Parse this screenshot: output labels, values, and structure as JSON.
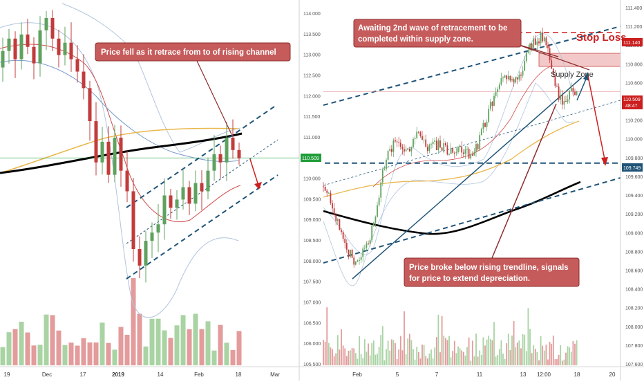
{
  "colors": {
    "up": "#5fa25f",
    "down": "#c23b3b",
    "vol_up": "#a9d3a3",
    "vol_down": "#e39b9b",
    "channel": "#1f5478",
    "ma_black": "#000000",
    "ma_orange": "#e9b64a",
    "ma_red": "#d14b4b",
    "ma_blue": "#7a9cc8",
    "band": "#b0c4de",
    "annotation_bg": "#c65b5b",
    "annotation_border": "#8e2c2c",
    "supply_zone": "#f2c8c8",
    "stop_loss_line": "#cc1f1f",
    "green_level": "#1f9d3a",
    "target_line": "#1f5478"
  },
  "chart_data": [
    {
      "type": "candlestick",
      "title": "",
      "y_axis": {
        "ticks": [
          "114.000",
          "113.500",
          "113.000",
          "112.500",
          "112.000",
          "111.500",
          "111.000",
          "110.500",
          "110.000",
          "109.500",
          "109.000",
          "108.500",
          "108.000",
          "107.500",
          "107.000",
          "106.500",
          "106.000",
          "105.500"
        ],
        "range": [
          105.4,
          114.2
        ],
        "price_label": "110.509",
        "price_value": 110.509
      },
      "x_axis": {
        "ticks": [
          "19",
          "Dec",
          "17",
          "2019",
          "14",
          "Feb",
          "18",
          "Mar"
        ]
      },
      "annotations": [
        {
          "text": "Price fell as it retrace from to of rising channel"
        }
      ],
      "series_notes": "daily candles with rising channel, 200 MA (black), 100 MA (orange), 50 MA (red), bollinger bands and volume",
      "values_close": [
        113.1,
        113.4,
        112.9,
        113.5,
        113.2,
        112.8,
        113.6,
        113.9,
        113.4,
        113.0,
        113.3,
        112.9,
        112.6,
        112.2,
        111.4,
        110.4,
        110.9,
        110.1,
        111.0,
        110.2,
        109.7,
        108.3,
        107.9,
        108.5,
        108.7,
        108.9,
        109.6,
        109.3,
        109.5,
        109.8,
        109.4,
        109.9,
        109.7,
        110.2,
        110.6,
        110.4,
        111.0,
        110.7,
        110.5
      ]
    },
    {
      "type": "candlestick",
      "title": "",
      "y_axis": {
        "ticks": [
          "111.400",
          "111.200",
          "111.000",
          "110.800",
          "110.600",
          "110.400",
          "110.200",
          "110.000",
          "109.800",
          "109.600",
          "109.400",
          "109.200",
          "109.000",
          "108.800",
          "108.600",
          "108.400",
          "108.200",
          "108.000",
          "107.800",
          "107.600"
        ],
        "range": [
          107.55,
          111.45
        ],
        "price_label": "110.509",
        "price_value": 110.509,
        "countdown_label": "48:47",
        "stop_loss_label": "111.140",
        "stop_loss_value": 111.14,
        "target_label": "109.749",
        "target_value": 109.749
      },
      "x_axis": {
        "ticks": [
          "Feb",
          "5",
          "7",
          "11",
          "13",
          "12:00",
          "18",
          "20"
        ]
      },
      "annotations": [
        {
          "line1": "Awaiting 2nd wave of retracement to be",
          "line2": "completed within supply zone."
        },
        {
          "text": "Stop Loss"
        },
        {
          "text": "Supply Zone"
        },
        {
          "line1": "Price broke below rising trendline, signals",
          "line2": "for price to extend depreciation."
        }
      ],
      "supply_zone": [
        110.78,
        110.92
      ],
      "series_notes": "4h candles with rising trendline, channel, 200 MA (black), 100 MA (orange), bollinger bands and volume"
    }
  ]
}
